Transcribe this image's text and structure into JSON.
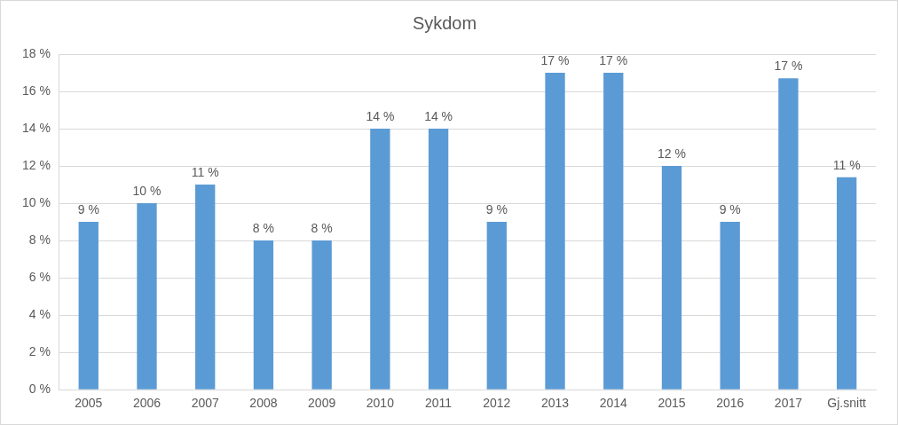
{
  "chart_data": {
    "type": "bar",
    "title": "Sykdom",
    "categories": [
      "2005",
      "2006",
      "2007",
      "2008",
      "2009",
      "2010",
      "2011",
      "2012",
      "2013",
      "2014",
      "2015",
      "2016",
      "2017",
      "Gj.snitt"
    ],
    "values": [
      9,
      10,
      11,
      8,
      8,
      14,
      14,
      9,
      17,
      17,
      12,
      9,
      16.7,
      11.4
    ],
    "value_labels": [
      "9 %",
      "10 %",
      "11 %",
      "8 %",
      "8 %",
      "14 %",
      "14 %",
      "9 %",
      "17 %",
      "17 %",
      "12 %",
      "9 %",
      "17 %",
      "11 %"
    ],
    "color": "#5b9bd5",
    "ylim": [
      0,
      18
    ],
    "yticks": [
      {
        "value": 0,
        "label": "0 %"
      },
      {
        "value": 2,
        "label": "2 %"
      },
      {
        "value": 4,
        "label": "4 %"
      },
      {
        "value": 6,
        "label": "6 %"
      },
      {
        "value": 8,
        "label": "8 %"
      },
      {
        "value": 10,
        "label": "10 %"
      },
      {
        "value": 12,
        "label": "12 %"
      },
      {
        "value": 14,
        "label": "14 %"
      },
      {
        "value": 16,
        "label": "16 %"
      },
      {
        "value": 18,
        "label": "18 %"
      }
    ],
    "grid": true,
    "data_labels": true
  }
}
